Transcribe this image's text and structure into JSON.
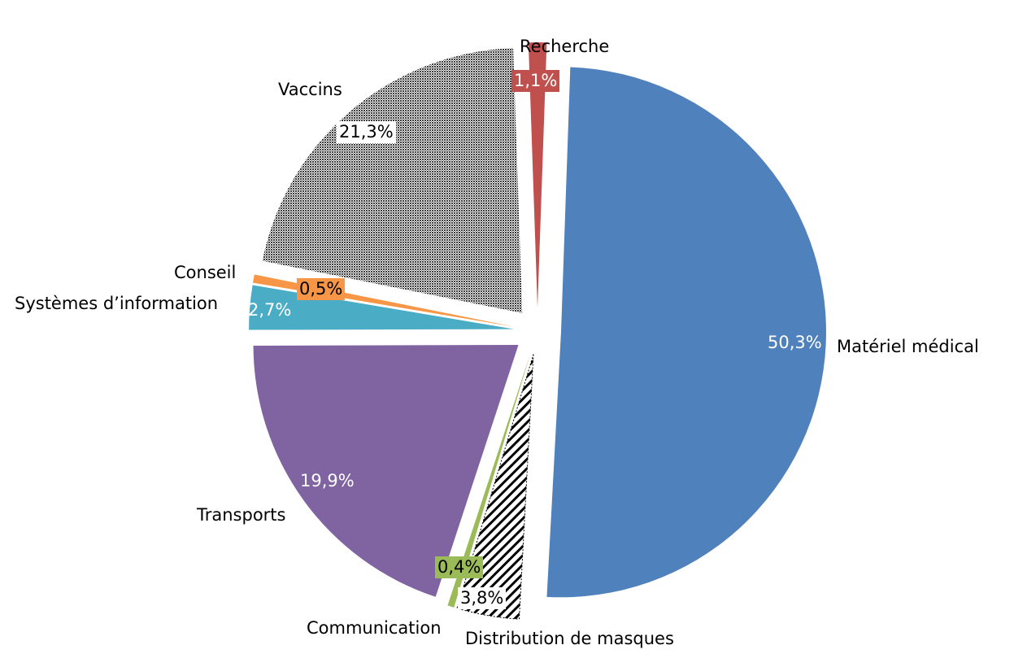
{
  "chart_data": {
    "type": "pie",
    "title": "",
    "exploded": true,
    "slices": [
      {
        "label": "Matériel médical",
        "value": 50.3,
        "value_label": "50,3%",
        "color": "#4f81bd",
        "pattern": "solid"
      },
      {
        "label": "Distribution de masques",
        "value": 3.8,
        "value_label": "3,8%",
        "color": "#000000",
        "pattern": "diagonal-stripes"
      },
      {
        "label": "Communication",
        "value": 0.4,
        "value_label": "0,4%",
        "color": "#9bbb59",
        "pattern": "solid"
      },
      {
        "label": "Transports",
        "value": 19.9,
        "value_label": "19,9%",
        "color": "#8064a2",
        "pattern": "solid"
      },
      {
        "label": "Systèmes d’information",
        "value": 2.7,
        "value_label": "2,7%",
        "color": "#4bacc6",
        "pattern": "solid"
      },
      {
        "label": "Conseil",
        "value": 0.5,
        "value_label": "0,5%",
        "color": "#f79646",
        "pattern": "solid"
      },
      {
        "label": "Vaccins",
        "value": 21.3,
        "value_label": "21,3%",
        "color": "#404040",
        "pattern": "dense-dots"
      },
      {
        "label": "Recherche",
        "value": 1.1,
        "value_label": "1,1%",
        "color": "#c0504d",
        "pattern": "solid"
      }
    ]
  }
}
